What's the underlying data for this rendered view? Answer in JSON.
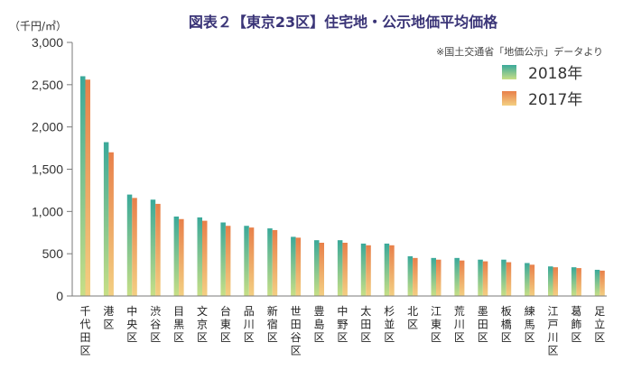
{
  "chart_data": {
    "type": "bar",
    "title": "図表２【東京23区】住宅地・公示地価平均価格",
    "unit_label": "（千円/㎡）",
    "source_note": "※国土交通省「地価公示」データより",
    "xlabel": "",
    "ylabel": "",
    "ylim": [
      0,
      3000
    ],
    "yticks": [
      0,
      500,
      1000,
      1500,
      2000,
      2500,
      3000
    ],
    "ytick_labels": [
      "0",
      "500",
      "1,000",
      "1,500",
      "2,000",
      "2,500",
      "3,000"
    ],
    "categories": [
      "千代田区",
      "港区",
      "中央区",
      "渋谷区",
      "目黒区",
      "文京区",
      "台東区",
      "品川区",
      "新宿区",
      "世田谷区",
      "豊島区",
      "中野区",
      "太田区",
      "杉並区",
      "北区",
      "江東区",
      "荒川区",
      "墨田区",
      "板橋区",
      "練馬区",
      "江戸川区",
      "葛飾区",
      "足立区"
    ],
    "series": [
      {
        "name": "2018年",
        "values": [
          2600,
          1820,
          1200,
          1140,
          940,
          930,
          870,
          830,
          800,
          700,
          660,
          660,
          620,
          620,
          470,
          450,
          450,
          430,
          430,
          390,
          350,
          340,
          310
        ]
      },
      {
        "name": "2017年",
        "values": [
          2560,
          1700,
          1160,
          1090,
          910,
          890,
          830,
          810,
          780,
          690,
          630,
          630,
          600,
          600,
          450,
          430,
          420,
          410,
          400,
          370,
          340,
          330,
          300
        ]
      }
    ],
    "legend_position": "top-right",
    "colors": {
      "s2018_top": "#3aa99a",
      "s2018_bottom": "#c7df86",
      "s2017_top": "#e8804a",
      "s2017_bottom": "#f3cf82",
      "axis": "#7a7a7a",
      "title": "#3a3477"
    }
  }
}
